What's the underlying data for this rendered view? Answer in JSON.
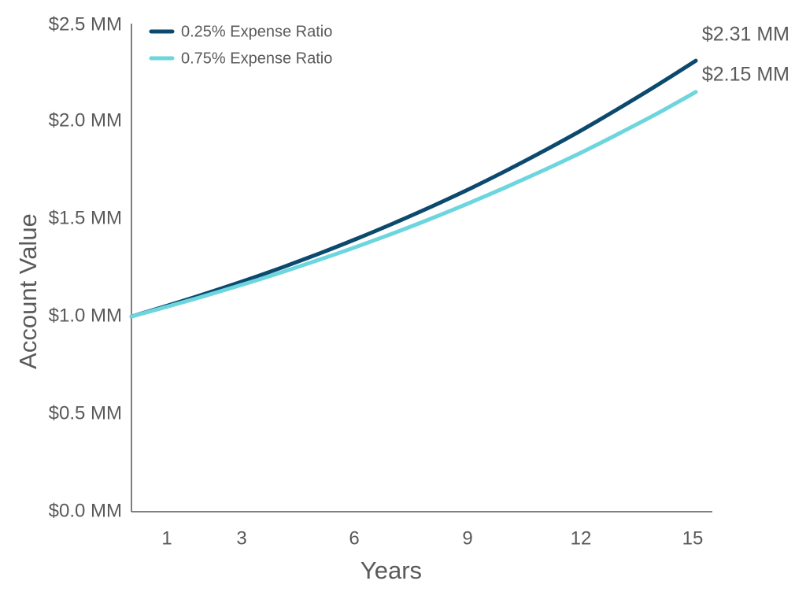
{
  "chart_data": {
    "type": "line",
    "title": "",
    "xlabel": "Years",
    "ylabel": "Account Value",
    "x_ticks": [
      1,
      3,
      6,
      9,
      12,
      15
    ],
    "y_ticks": [
      "$0.0 MM",
      "$0.5 MM",
      "$1.0 MM",
      "$1.5 MM",
      "$2.0 MM",
      "$2.5 MM"
    ],
    "xlim": [
      0,
      15.5
    ],
    "ylim": [
      0,
      2.5
    ],
    "x": [
      0,
      1,
      2,
      3,
      4,
      5,
      6,
      7,
      8,
      9,
      10,
      11,
      12,
      13,
      14,
      15
    ],
    "series": [
      {
        "name": "0.25% Expense Ratio",
        "color": "#0b4a6e",
        "values": [
          1.0,
          1.058,
          1.119,
          1.183,
          1.251,
          1.323,
          1.399,
          1.48,
          1.565,
          1.655,
          1.751,
          1.852,
          1.958,
          2.071,
          2.188,
          2.31
        ]
      },
      {
        "name": "0.75% Expense Ratio",
        "color": "#6dd5de",
        "values": [
          1.0,
          1.053,
          1.108,
          1.166,
          1.227,
          1.291,
          1.358,
          1.429,
          1.504,
          1.583,
          1.666,
          1.753,
          1.844,
          1.941,
          2.042,
          2.15
        ]
      }
    ],
    "end_labels": [
      "$2.31 MM",
      "$2.15 MM"
    ],
    "legend_position": "top-left",
    "grid": false
  }
}
